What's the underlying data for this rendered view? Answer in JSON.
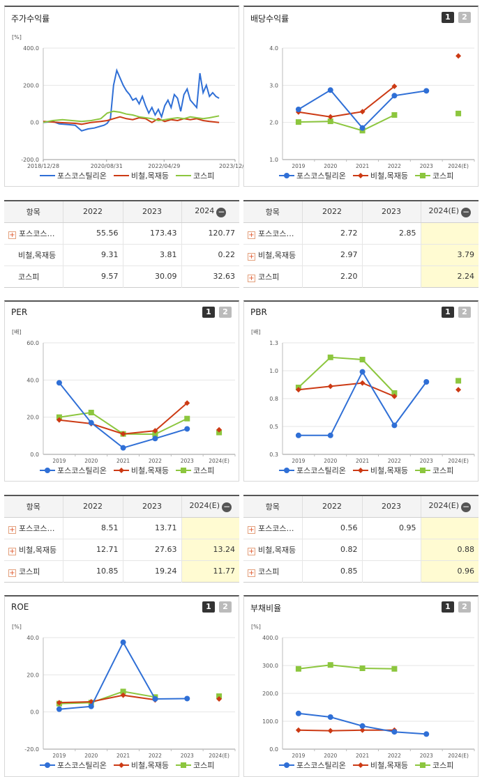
{
  "series_names": [
    "포스코스틸리온",
    "비철,목재등",
    "코스피"
  ],
  "colors": {
    "s0": "#2f6fd6",
    "s1": "#cc3a14",
    "s2": "#8cc63e"
  },
  "markers": [
    "circle",
    "diamond",
    "square"
  ],
  "pager": {
    "p1": "1",
    "p2": "2"
  },
  "panels": {
    "stock": {
      "title": "주가수익률",
      "chart_data": {
        "type": "line",
        "title": "주가수익률",
        "unit": "[%]",
        "ylim": [
          -200,
          400
        ],
        "yticks": [
          "400.0",
          "200.0",
          "0.0",
          "-200.0"
        ],
        "xticks": [
          "2018/12/28",
          "2020/08/31",
          "2022/04/29",
          "2023/12/28"
        ],
        "xrange": [
          0,
          60
        ],
        "series": [
          {
            "name": "포스코스틸리온",
            "points": [
              [
                0,
                0
              ],
              [
                3,
                5
              ],
              [
                5,
                -8
              ],
              [
                8,
                -12
              ],
              [
                10,
                -15
              ],
              [
                12,
                -45
              ],
              [
                14,
                -35
              ],
              [
                16,
                -30
              ],
              [
                18,
                -20
              ],
              [
                19,
                -15
              ],
              [
                20,
                -5
              ],
              [
                21,
                20
              ],
              [
                22,
                200
              ],
              [
                23,
                280
              ],
              [
                24,
                240
              ],
              [
                25,
                200
              ],
              [
                26,
                170
              ],
              [
                27,
                150
              ],
              [
                28,
                120
              ],
              [
                29,
                130
              ],
              [
                30,
                100
              ],
              [
                31,
                140
              ],
              [
                32,
                90
              ],
              [
                33,
                50
              ],
              [
                34,
                80
              ],
              [
                35,
                40
              ],
              [
                36,
                70
              ],
              [
                37,
                30
              ],
              [
                38,
                90
              ],
              [
                39,
                120
              ],
              [
                40,
                80
              ],
              [
                41,
                150
              ],
              [
                42,
                130
              ],
              [
                43,
                60
              ],
              [
                44,
                150
              ],
              [
                45,
                180
              ],
              [
                46,
                120
              ],
              [
                47,
                100
              ],
              [
                48,
                80
              ],
              [
                49,
                265
              ],
              [
                50,
                160
              ],
              [
                51,
                200
              ],
              [
                52,
                140
              ],
              [
                53,
                160
              ],
              [
                54,
                140
              ],
              [
                55,
                130
              ]
            ]
          },
          {
            "name": "비철,목재등",
            "points": [
              [
                0,
                5
              ],
              [
                5,
                0
              ],
              [
                10,
                -5
              ],
              [
                12,
                -10
              ],
              [
                15,
                0
              ],
              [
                18,
                5
              ],
              [
                20,
                10
              ],
              [
                22,
                20
              ],
              [
                24,
                30
              ],
              [
                26,
                20
              ],
              [
                28,
                15
              ],
              [
                30,
                25
              ],
              [
                32,
                20
              ],
              [
                34,
                0
              ],
              [
                36,
                20
              ],
              [
                38,
                5
              ],
              [
                40,
                15
              ],
              [
                42,
                10
              ],
              [
                44,
                20
              ],
              [
                46,
                15
              ],
              [
                48,
                20
              ],
              [
                50,
                10
              ],
              [
                52,
                5
              ],
              [
                55,
                0
              ]
            ]
          },
          {
            "name": "코스피",
            "points": [
              [
                0,
                0
              ],
              [
                3,
                10
              ],
              [
                6,
                15
              ],
              [
                9,
                10
              ],
              [
                12,
                5
              ],
              [
                15,
                10
              ],
              [
                18,
                20
              ],
              [
                20,
                50
              ],
              [
                22,
                60
              ],
              [
                24,
                55
              ],
              [
                26,
                45
              ],
              [
                28,
                40
              ],
              [
                30,
                30
              ],
              [
                32,
                25
              ],
              [
                34,
                20
              ],
              [
                36,
                10
              ],
              [
                38,
                15
              ],
              [
                40,
                20
              ],
              [
                42,
                25
              ],
              [
                44,
                20
              ],
              [
                46,
                30
              ],
              [
                48,
                25
              ],
              [
                50,
                20
              ],
              [
                52,
                25
              ],
              [
                55,
                35
              ]
            ]
          }
        ]
      }
    },
    "dividend": {
      "title": "배당수익률",
      "chart_data": {
        "type": "line",
        "title": "배당수익률",
        "unit": "",
        "ylim": [
          1.0,
          4.0
        ],
        "yticks": [
          "4.0",
          "3.0",
          "2.0",
          "1.0"
        ],
        "categories": [
          "2019",
          "2020",
          "2021",
          "2022",
          "2023",
          "2024(E)"
        ],
        "series": [
          {
            "name": "포스코스틸리온",
            "values": [
              2.35,
              2.87,
              1.85,
              2.72,
              2.85,
              null
            ]
          },
          {
            "name": "비철,목재등",
            "values": [
              2.28,
              2.15,
              2.29,
              2.97,
              null,
              3.79
            ]
          },
          {
            "name": "코스피",
            "values": [
              2.01,
              2.03,
              1.78,
              2.2,
              null,
              2.24
            ]
          }
        ]
      }
    },
    "per": {
      "title": "PER",
      "chart_data": {
        "type": "line",
        "title": "PER",
        "unit": "[배]",
        "ylim": [
          0,
          60
        ],
        "yticks": [
          "60.0",
          "40.0",
          "20.0",
          "0.0"
        ],
        "categories": [
          "2019",
          "2020",
          "2021",
          "2022",
          "2023",
          "2024(E)"
        ],
        "series": [
          {
            "name": "포스코스틸리온",
            "values": [
              38.5,
              17.0,
              3.5,
              8.51,
              13.71,
              null
            ]
          },
          {
            "name": "비철,목재등",
            "values": [
              18.5,
              16.5,
              11.0,
              12.71,
              27.63,
              13.24
            ]
          },
          {
            "name": "코스피",
            "values": [
              20.0,
              22.5,
              11.0,
              10.85,
              19.24,
              11.77
            ]
          }
        ]
      }
    },
    "pbr": {
      "title": "PBR",
      "chart_data": {
        "type": "line",
        "title": "PBR",
        "unit": "[배]",
        "ylim": [
          0.3,
          1.3
        ],
        "yticks": [
          "1.3",
          "1.0",
          "0.8",
          "0.5",
          "0.3"
        ],
        "categories": [
          "2019",
          "2020",
          "2021",
          "2022",
          "2023",
          "2024(E)"
        ],
        "series": [
          {
            "name": "포스코스틸리온",
            "values": [
              0.47,
              0.47,
              1.04,
              0.56,
              0.95,
              null
            ]
          },
          {
            "name": "비철,목재등",
            "values": [
              0.88,
              0.91,
              0.94,
              0.82,
              null,
              0.88
            ]
          },
          {
            "name": "코스피",
            "values": [
              0.9,
              1.17,
              1.15,
              0.85,
              null,
              0.96
            ]
          }
        ]
      }
    },
    "roe": {
      "title": "ROE",
      "chart_data": {
        "type": "line",
        "title": "ROE",
        "unit": "[%]",
        "ylim": [
          -20,
          40
        ],
        "yticks": [
          "40.0",
          "20.0",
          "0.0",
          "-20.0"
        ],
        "categories": [
          "2019",
          "2020",
          "2021",
          "2022",
          "2023",
          "2024(E)"
        ],
        "series": [
          {
            "name": "포스코스틸리온",
            "values": [
              1.5,
              3.0,
              37.5,
              7.0,
              7.2,
              null
            ]
          },
          {
            "name": "비철,목재등",
            "values": [
              5.0,
              5.5,
              9.0,
              6.5,
              null,
              7.0
            ]
          },
          {
            "name": "코스피",
            "values": [
              4.5,
              5.0,
              11.0,
              8.0,
              null,
              8.5
            ]
          }
        ]
      }
    },
    "debt": {
      "title": "부채비율",
      "chart_data": {
        "type": "line",
        "title": "부채비율",
        "unit": "[%]",
        "ylim": [
          0,
          400
        ],
        "yticks": [
          "400.0",
          "300.0",
          "200.0",
          "100.0",
          "0.0"
        ],
        "categories": [
          "2019",
          "2020",
          "2021",
          "2022",
          "2023",
          "2024(E)"
        ],
        "series": [
          {
            "name": "포스코스틸리온",
            "values": [
              128,
              115,
              83,
              62,
              54,
              null
            ]
          },
          {
            "name": "비철,목재등",
            "values": [
              68,
              66,
              68,
              68,
              null,
              null
            ]
          },
          {
            "name": "코스피",
            "values": [
              288,
              302,
              290,
              288,
              null,
              null
            ]
          }
        ]
      }
    }
  },
  "tables": {
    "stock": {
      "headers": [
        "항목",
        "2022",
        "2023",
        "2024"
      ],
      "rows": [
        {
          "label": "포스코스…",
          "plus": true,
          "values": [
            "55.56",
            "173.43",
            "120.77"
          ]
        },
        {
          "label": "비철,목재등",
          "plus": false,
          "values": [
            "9.31",
            "3.81",
            "0.22"
          ]
        },
        {
          "label": "코스피",
          "plus": false,
          "values": [
            "9.57",
            "30.09",
            "32.63"
          ]
        }
      ]
    },
    "dividend": {
      "headers": [
        "항목",
        "2022",
        "2023",
        "2024(E)"
      ],
      "rows": [
        {
          "label": "포스코스…",
          "plus": true,
          "values": [
            "2.72",
            "2.85",
            ""
          ]
        },
        {
          "label": "비철,목재등",
          "plus": true,
          "values": [
            "2.97",
            "",
            "3.79"
          ]
        },
        {
          "label": "코스피",
          "plus": true,
          "values": [
            "2.20",
            "",
            "2.24"
          ]
        }
      ]
    },
    "per": {
      "headers": [
        "항목",
        "2022",
        "2023",
        "2024(E)"
      ],
      "rows": [
        {
          "label": "포스코스…",
          "plus": true,
          "values": [
            "8.51",
            "13.71",
            ""
          ]
        },
        {
          "label": "비철,목재등",
          "plus": true,
          "values": [
            "12.71",
            "27.63",
            "13.24"
          ]
        },
        {
          "label": "코스피",
          "plus": true,
          "values": [
            "10.85",
            "19.24",
            "11.77"
          ]
        }
      ]
    },
    "pbr": {
      "headers": [
        "항목",
        "2022",
        "2023",
        "2024(E)"
      ],
      "rows": [
        {
          "label": "포스코스…",
          "plus": true,
          "values": [
            "0.56",
            "0.95",
            ""
          ]
        },
        {
          "label": "비철,목재등",
          "plus": true,
          "values": [
            "0.82",
            "",
            "0.88"
          ]
        },
        {
          "label": "코스피",
          "plus": true,
          "values": [
            "0.85",
            "",
            "0.96"
          ]
        }
      ]
    }
  }
}
